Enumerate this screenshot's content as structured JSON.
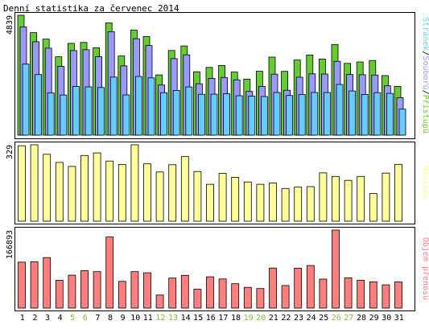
{
  "colors": {
    "background": "#ffffff",
    "panel_border": "#000000",
    "pages": "#66ccff",
    "files": "#9999ff",
    "hits": "#66cc33",
    "visits": "#ffff99",
    "volume": "#ff7f7f",
    "weekend_label": "#7fbf3f",
    "bar_outline": "#000000"
  },
  "chart_data": [
    {
      "type": "bar",
      "title": "Denní statistika za červenec 2014",
      "categories": [
        "1",
        "2",
        "3",
        "4",
        "5",
        "6",
        "7",
        "8",
        "9",
        "10",
        "11",
        "12",
        "13",
        "14",
        "15",
        "16",
        "17",
        "18",
        "19",
        "20",
        "21",
        "22",
        "23",
        "24",
        "25",
        "26",
        "27",
        "28",
        "29",
        "30",
        "31"
      ],
      "weekend_days": [
        "5",
        "6",
        "12",
        "13",
        "19",
        "20",
        "26",
        "27"
      ],
      "ymax_label": "4839",
      "ylim": [
        0,
        4839
      ],
      "legend": {
        "position": "right, vertical",
        "items": [
          "Stránek",
          "Souborů",
          "Přístupů"
        ],
        "separator": "/"
      },
      "series": [
        {
          "name": "Přístupů",
          "values": [
            4839,
            4136,
            3878,
            3163,
            3706,
            3742,
            3527,
            4532,
            3196,
            4245,
            3978,
            2431,
            3417,
            3602,
            2560,
            2735,
            2812,
            2546,
            2259,
            2578,
            3150,
            2576,
            3033,
            3236,
            3071,
            3659,
            2898,
            2956,
            3014,
            2403,
            1967
          ]
        },
        {
          "name": "Souborů",
          "values": [
            4366,
            3769,
            3510,
            2777,
            3414,
            3449,
            3164,
            4178,
            2796,
            3893,
            3617,
            2022,
            3088,
            3242,
            2076,
            2289,
            2327,
            2232,
            1763,
            1966,
            2462,
            1812,
            2337,
            2476,
            2469,
            2980,
            2450,
            2439,
            2426,
            1992,
            1511
          ]
        },
        {
          "name": "Stránek",
          "values": [
            2868,
            2446,
            1704,
            1620,
            1969,
            1949,
            1923,
            2344,
            1624,
            2368,
            2311,
            1715,
            1805,
            1946,
            1650,
            1654,
            1670,
            1590,
            1573,
            1559,
            1720,
            1600,
            1641,
            1721,
            1722,
            2045,
            1783,
            1642,
            1715,
            1687,
            1049
          ]
        }
      ]
    },
    {
      "type": "bar",
      "categories": [
        "1",
        "2",
        "3",
        "4",
        "5",
        "6",
        "7",
        "8",
        "9",
        "10",
        "11",
        "12",
        "13",
        "14",
        "15",
        "16",
        "17",
        "18",
        "19",
        "20",
        "21",
        "22",
        "23",
        "24",
        "25",
        "26",
        "27",
        "28",
        "29",
        "30",
        "31"
      ],
      "ymax_label": "329",
      "ylim": [
        0,
        329
      ],
      "legend": {
        "position": "right, vertical",
        "items": [
          "Návštěv"
        ]
      },
      "series": [
        {
          "name": "Návštěv",
          "values": [
            325,
            329,
            288,
            253,
            236,
            283,
            294,
            259,
            244,
            329,
            247,
            212,
            243,
            278,
            214,
            159,
            206,
            189,
            169,
            159,
            164,
            141,
            147,
            149,
            208,
            193,
            176,
            193,
            119,
            207,
            245
          ]
        }
      ]
    },
    {
      "type": "bar",
      "categories": [
        "1",
        "2",
        "3",
        "4",
        "5",
        "6",
        "7",
        "8",
        "9",
        "10",
        "11",
        "12",
        "13",
        "14",
        "15",
        "16",
        "17",
        "18",
        "19",
        "20",
        "21",
        "22",
        "23",
        "24",
        "25",
        "26",
        "27",
        "28",
        "29",
        "30",
        "31"
      ],
      "ymax_label": "166893",
      "ylim": [
        0,
        166893
      ],
      "legend": {
        "position": "right, vertical",
        "items": [
          "Objem přenosu"
        ]
      },
      "series": [
        {
          "name": "Objem přenosu",
          "values": [
            98260,
            99150,
            108000,
            59400,
            70450,
            80000,
            77900,
            152040,
            57200,
            77900,
            75600,
            27800,
            64200,
            70000,
            40500,
            67000,
            62200,
            52200,
            44400,
            41800,
            85700,
            48400,
            85300,
            91100,
            61900,
            166893,
            64800,
            59700,
            56300,
            49700,
            55900
          ]
        }
      ]
    }
  ]
}
